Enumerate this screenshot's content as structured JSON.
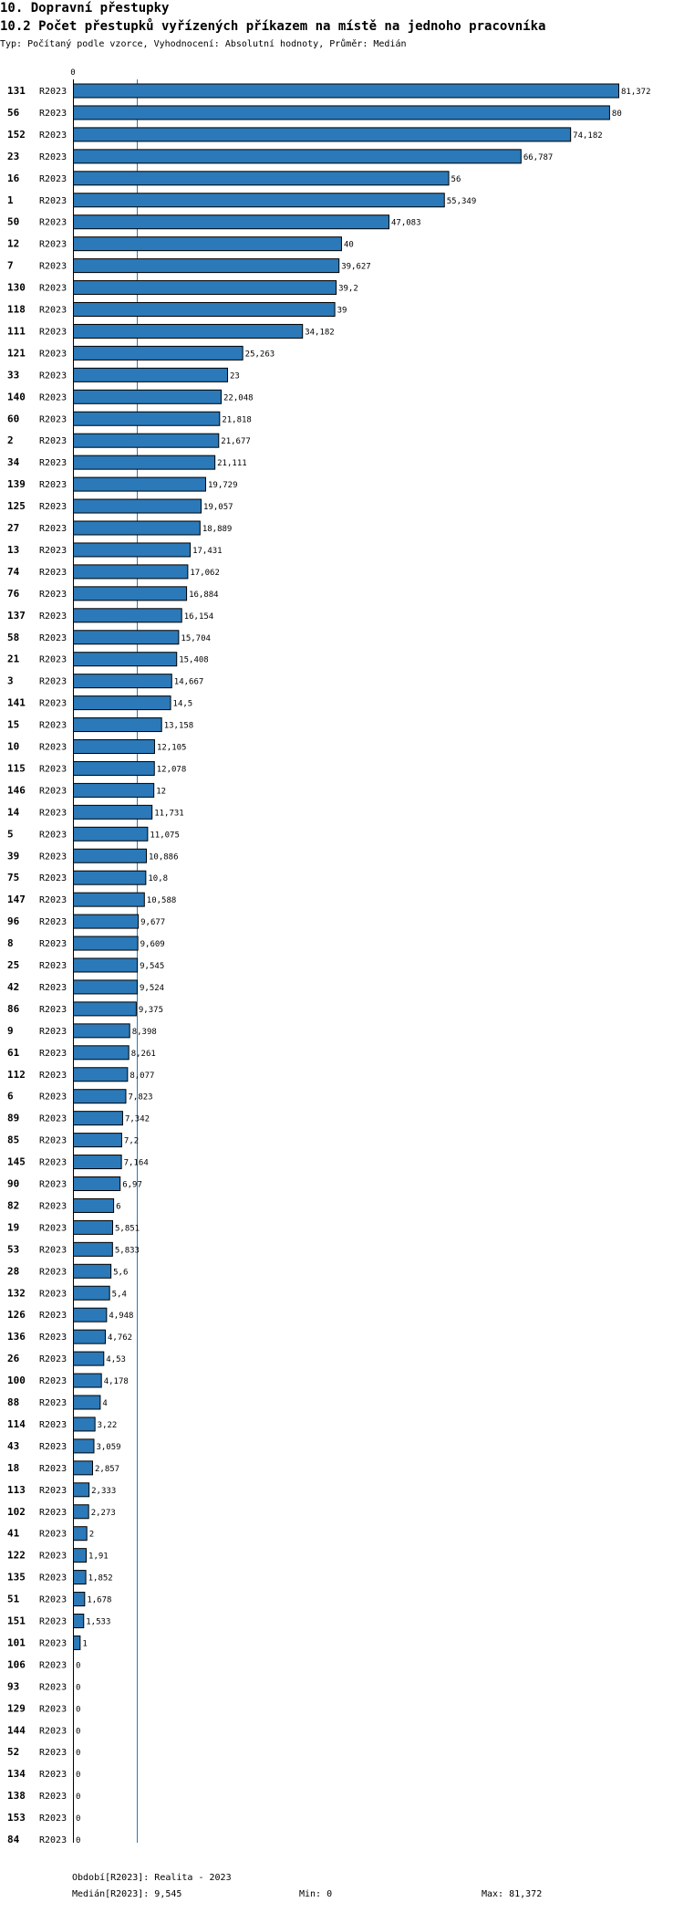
{
  "header": {
    "title": "10. Dopravní přestupky",
    "subtitle": "10.2 Počet přestupků vyřízených příkazem na místě na jednoho pracovníka",
    "description": "Typ: Počítaný podle vzorce, Vyhodnocení: Absolutní hodnoty, Průměr: Medián"
  },
  "colors": {
    "bar": "#2b79b8",
    "bar_border": "#000000",
    "median_line": "#2b79b8"
  },
  "chart_data": {
    "type": "bar",
    "orientation": "horizontal",
    "axis_origin_label": "0",
    "period_label": "R2023",
    "xlim": [
      0,
      81.372
    ],
    "median": 9.545,
    "categories": [
      "131",
      "56",
      "152",
      "23",
      "16",
      "1",
      "50",
      "12",
      "7",
      "130",
      "118",
      "111",
      "121",
      "33",
      "140",
      "60",
      "2",
      "34",
      "139",
      "125",
      "27",
      "13",
      "74",
      "76",
      "137",
      "58",
      "21",
      "3",
      "141",
      "15",
      "10",
      "115",
      "146",
      "14",
      "5",
      "39",
      "75",
      "147",
      "96",
      "8",
      "25",
      "42",
      "86",
      "9",
      "61",
      "112",
      "6",
      "89",
      "85",
      "145",
      "90",
      "82",
      "19",
      "53",
      "28",
      "132",
      "126",
      "136",
      "26",
      "100",
      "88",
      "114",
      "43",
      "18",
      "113",
      "102",
      "41",
      "122",
      "135",
      "51",
      "151",
      "101",
      "106",
      "93",
      "129",
      "144",
      "52",
      "134",
      "138",
      "153",
      "84"
    ],
    "values": [
      81.372,
      80,
      74.182,
      66.787,
      56,
      55.349,
      47.083,
      40,
      39.627,
      39.2,
      39,
      34.182,
      25.263,
      23,
      22.048,
      21.818,
      21.677,
      21.111,
      19.729,
      19.057,
      18.889,
      17.431,
      17.062,
      16.884,
      16.154,
      15.704,
      15.408,
      14.667,
      14.5,
      13.158,
      12.105,
      12.078,
      12,
      11.731,
      11.075,
      10.886,
      10.8,
      10.588,
      9.677,
      9.609,
      9.545,
      9.524,
      9.375,
      8.398,
      8.261,
      8.077,
      7.823,
      7.342,
      7.2,
      7.164,
      6.97,
      6,
      5.851,
      5.833,
      5.6,
      5.4,
      4.948,
      4.762,
      4.53,
      4.178,
      4,
      3.22,
      3.059,
      2.857,
      2.333,
      2.273,
      2,
      1.91,
      1.852,
      1.678,
      1.533,
      1,
      0,
      0,
      0,
      0,
      0,
      0,
      0,
      0,
      0
    ],
    "value_labels": [
      "81,372",
      "80",
      "74,182",
      "66,787",
      "56",
      "55,349",
      "47,083",
      "40",
      "39,627",
      "39,2",
      "39",
      "34,182",
      "25,263",
      "23",
      "22,048",
      "21,818",
      "21,677",
      "21,111",
      "19,729",
      "19,057",
      "18,889",
      "17,431",
      "17,062",
      "16,884",
      "16,154",
      "15,704",
      "15,408",
      "14,667",
      "14,5",
      "13,158",
      "12,105",
      "12,078",
      "12",
      "11,731",
      "11,075",
      "10,886",
      "10,8",
      "10,588",
      "9,677",
      "9,609",
      "9,545",
      "9,524",
      "9,375",
      "8,398",
      "8,261",
      "8,077",
      "7,823",
      "7,342",
      "7,2",
      "7,164",
      "6,97",
      "6",
      "5,851",
      "5,833",
      "5,6",
      "5,4",
      "4,948",
      "4,762",
      "4,53",
      "4,178",
      "4",
      "3,22",
      "3,059",
      "2,857",
      "2,333",
      "2,273",
      "2",
      "1,91",
      "1,852",
      "1,678",
      "1,533",
      "1",
      "0",
      "0",
      "0",
      "0",
      "0",
      "0",
      "0",
      "0",
      "0"
    ]
  },
  "footer": {
    "period": "Období[R2023]: Realita - 2023",
    "median": "Medián[R2023]: 9,545",
    "min": "Min: 0",
    "max": "Max: 81,372"
  }
}
